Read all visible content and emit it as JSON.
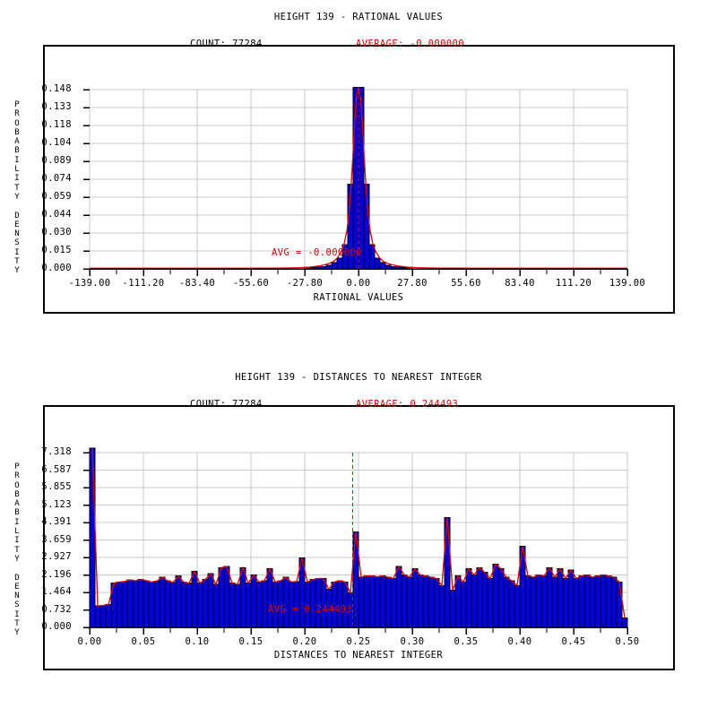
{
  "page": {
    "background": "#ffffff"
  },
  "colors": {
    "bar_fill": "#0000e1",
    "bar_edge": "#000000",
    "line_red": "#e10000",
    "grid": "#c9c9c9",
    "text": "#000000"
  },
  "charts": [
    {
      "title": "HEIGHT 139 - RATIONAL VALUES",
      "count_label": "COUNT: 77284",
      "average_label": "AVERAGE: -0.000000",
      "avg_annotation": "AVG = -0.000000",
      "y_axis_title": "PROBABILITY DENSITY",
      "x_axis_title": "RATIONAL VALUES",
      "y_ticks": [
        "0.148",
        "0.133",
        "0.118",
        "0.104",
        "0.089",
        "0.074",
        "0.059",
        "0.044",
        "0.030",
        "0.015",
        "0.000"
      ],
      "x_ticks": [
        "-139.00",
        "-111.20",
        "-83.40",
        "-55.60",
        "-27.80",
        "0.00",
        "27.80",
        "55.60",
        "83.40",
        "111.20",
        "139.00"
      ],
      "chart_data": {
        "type": "bar",
        "subtype": "histogram-with-fit-line",
        "count": 77284,
        "average": 0.0,
        "average_display": "-0.000000",
        "x_range": [
          -139.0,
          139.0
        ],
        "y_axis_max_tick": 0.148,
        "bin_count": 100,
        "values": [
          0.0005,
          0.0005,
          0.0005,
          0.0005,
          0.0005,
          0.0005,
          0.0005,
          0.0005,
          0.0005,
          0.0005,
          0.0005,
          0.0005,
          0.0005,
          0.0005,
          0.0005,
          0.0005,
          0.0005,
          0.0005,
          0.0005,
          0.0005,
          0.0005,
          0.0005,
          0.0005,
          0.0005,
          0.0005,
          0.0005,
          0.0005,
          0.0005,
          0.0005,
          0.0005,
          0.0005,
          0.0005,
          0.0005,
          0.0005,
          0.0005,
          0.0005,
          0.0005,
          0.0005,
          0.0005,
          0.0005,
          0.0008,
          0.001,
          0.0015,
          0.002,
          0.003,
          0.005,
          0.009,
          0.02,
          0.07,
          0.15,
          0.15,
          0.07,
          0.02,
          0.009,
          0.005,
          0.003,
          0.002,
          0.0015,
          0.001,
          0.0008,
          0.0005,
          0.0005,
          0.0005,
          0.0005,
          0.0005,
          0.0005,
          0.0005,
          0.0005,
          0.0005,
          0.0005,
          0.0005,
          0.0005,
          0.0005,
          0.0005,
          0.0005,
          0.0005,
          0.0005,
          0.0005,
          0.0005,
          0.0005,
          0.0005,
          0.0005,
          0.0005,
          0.0005,
          0.0005,
          0.0005,
          0.0005,
          0.0005,
          0.0005,
          0.0005,
          0.0005,
          0.0005,
          0.0005,
          0.0005,
          0.0005,
          0.0005,
          0.0005,
          0.0005,
          0.0005,
          0.0005
        ],
        "fit_curve": [
          [
            -139,
            0.0005
          ],
          [
            -60,
            0.0005
          ],
          [
            -40,
            0.0007
          ],
          [
            -30,
            0.001
          ],
          [
            -25,
            0.0015
          ],
          [
            -20,
            0.0025
          ],
          [
            -16,
            0.004
          ],
          [
            -13,
            0.006
          ],
          [
            -11,
            0.009
          ],
          [
            -9,
            0.014
          ],
          [
            -7.5,
            0.02
          ],
          [
            -6,
            0.032
          ],
          [
            -5,
            0.045
          ],
          [
            -4,
            0.065
          ],
          [
            -3,
            0.09
          ],
          [
            -2,
            0.12
          ],
          [
            -1.2,
            0.14
          ],
          [
            0,
            0.15
          ],
          [
            1.2,
            0.14
          ],
          [
            2,
            0.12
          ],
          [
            3,
            0.09
          ],
          [
            4,
            0.065
          ],
          [
            5,
            0.045
          ],
          [
            6,
            0.032
          ],
          [
            7.5,
            0.02
          ],
          [
            9,
            0.014
          ],
          [
            11,
            0.009
          ],
          [
            13,
            0.006
          ],
          [
            16,
            0.004
          ],
          [
            20,
            0.0025
          ],
          [
            25,
            0.0015
          ],
          [
            30,
            0.001
          ],
          [
            40,
            0.0007
          ],
          [
            60,
            0.0005
          ],
          [
            139,
            0.0005
          ]
        ]
      }
    },
    {
      "title": "HEIGHT 139 - DISTANCES TO NEAREST INTEGER",
      "count_label": "COUNT: 77284",
      "average_label": "AVERAGE: 0.244493",
      "avg_annotation": "AVG = 0.244493",
      "y_axis_title": "PROBABILITY DENSITY",
      "x_axis_title": "DISTANCES TO NEAREST INTEGER",
      "y_ticks": [
        "7.318",
        "6.587",
        "5.855",
        "5.123",
        "4.391",
        "3.659",
        "2.927",
        "2.196",
        "1.464",
        "0.732",
        "0.000"
      ],
      "x_ticks": [
        "0.00",
        "0.05",
        "0.10",
        "0.15",
        "0.20",
        "0.25",
        "0.30",
        "0.35",
        "0.40",
        "0.45",
        "0.50"
      ],
      "chart_data": {
        "type": "bar",
        "subtype": "histogram-with-fit-line",
        "count": 77284,
        "average": 0.244493,
        "average_display": "0.244493",
        "x_range": [
          0.0,
          0.5
        ],
        "y_axis_max_tick": 7.318,
        "bin_count": 100,
        "values": [
          7.5,
          0.9,
          0.92,
          0.95,
          1.85,
          1.9,
          1.92,
          1.98,
          1.95,
          2.0,
          1.96,
          1.9,
          1.94,
          2.1,
          1.95,
          1.88,
          2.15,
          1.9,
          1.85,
          2.35,
          1.85,
          2.0,
          2.25,
          1.8,
          2.5,
          2.55,
          1.85,
          1.8,
          2.5,
          1.85,
          2.2,
          1.9,
          1.95,
          2.45,
          1.9,
          1.95,
          2.1,
          1.9,
          1.92,
          2.9,
          1.9,
          2.0,
          2.05,
          2.05,
          1.6,
          1.9,
          1.95,
          1.9,
          1.45,
          4.0,
          2.1,
          2.15,
          2.15,
          2.12,
          2.15,
          2.1,
          2.05,
          2.55,
          2.2,
          2.1,
          2.45,
          2.2,
          2.15,
          2.1,
          2.05,
          1.75,
          4.6,
          1.55,
          2.15,
          1.9,
          2.45,
          2.2,
          2.5,
          2.3,
          2.05,
          2.65,
          2.45,
          2.1,
          1.95,
          1.75,
          3.4,
          2.15,
          2.1,
          2.2,
          2.15,
          2.5,
          2.1,
          2.45,
          2.05,
          2.4,
          2.05,
          2.15,
          2.2,
          2.1,
          2.15,
          2.2,
          2.15,
          2.1,
          1.9,
          0.4
        ],
        "fit_curve": null
      }
    }
  ]
}
